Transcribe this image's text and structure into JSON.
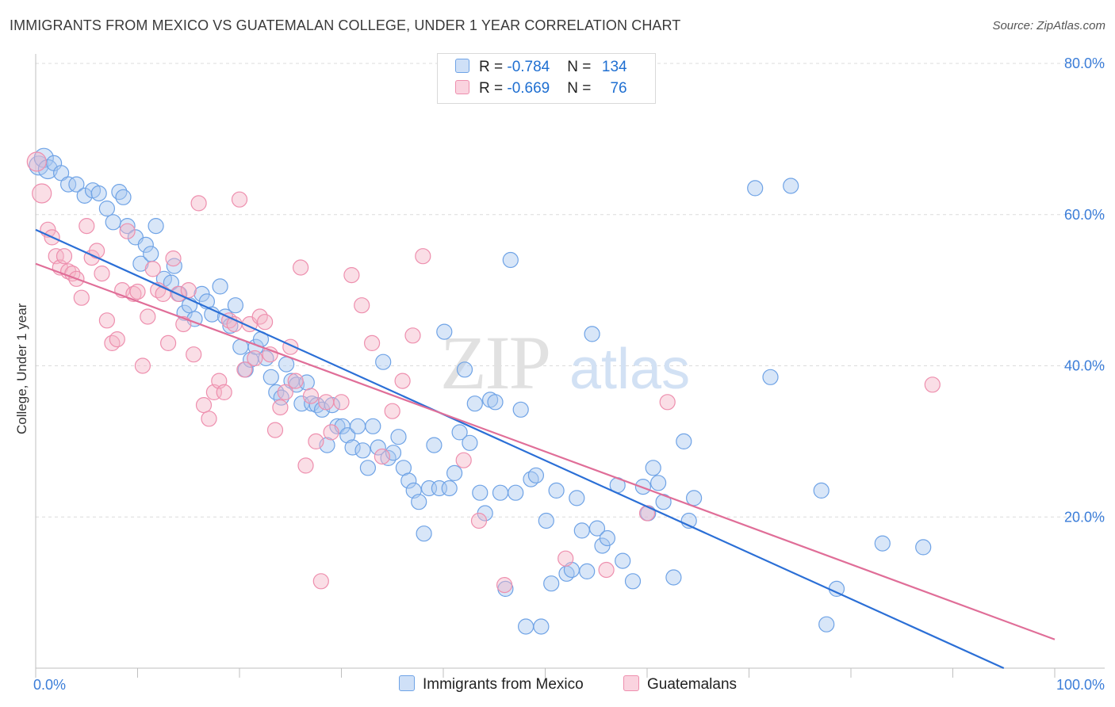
{
  "header": {
    "title": "IMMIGRANTS FROM MEXICO VS GUATEMALAN COLLEGE, UNDER 1 YEAR CORRELATION CHART",
    "source": "Source: ZipAtlas.com"
  },
  "watermark": {
    "zip": "ZIP",
    "atlas": "atlas"
  },
  "legend": {
    "rows": [
      {
        "r_label": "R = ",
        "r_value": "-0.784",
        "n_label": "N = ",
        "n_value": "134",
        "color": "#a8c8f0"
      },
      {
        "r_label": "R = ",
        "r_value": "-0.669",
        "n_label": "N = ",
        "n_value": "76",
        "color": "#f5b5c8"
      }
    ]
  },
  "chart_data": {
    "type": "scatter",
    "title": "IMMIGRANTS FROM MEXICO VS GUATEMALAN COLLEGE, UNDER 1 YEAR CORRELATION CHART",
    "xlabel": "",
    "ylabel": "College, Under 1 year",
    "xlim": [
      0,
      100
    ],
    "ylim": [
      0,
      80
    ],
    "x_tick_labels": [
      "0.0%",
      "100.0%"
    ],
    "y_ticks": [
      20,
      40,
      60,
      80
    ],
    "y_tick_labels": [
      "20.0%",
      "40.0%",
      "60.0%",
      "80.0%"
    ],
    "grid": "horizontal-dashed",
    "legend_position": "bottom-center",
    "series": [
      {
        "name": "Immigrants from Mexico",
        "color": "#6fa3e6",
        "fill": "#a8c8f0",
        "line_color": "#2b6fd6",
        "trend": {
          "x": [
            0,
            95
          ],
          "y": [
            58,
            0
          ]
        },
        "points": [
          [
            0.3,
            66.5
          ],
          [
            0.8,
            67.5
          ],
          [
            1.2,
            66
          ],
          [
            1.8,
            66.8
          ],
          [
            2.5,
            65.5
          ],
          [
            3.2,
            64
          ],
          [
            4,
            64
          ],
          [
            4.8,
            62.5
          ],
          [
            5.6,
            63.2
          ],
          [
            6.2,
            62.8
          ],
          [
            7,
            60.8
          ],
          [
            7.6,
            59
          ],
          [
            8.2,
            63
          ],
          [
            8.6,
            62.3
          ],
          [
            9,
            58.5
          ],
          [
            9.8,
            57
          ],
          [
            10.3,
            53.5
          ],
          [
            10.8,
            56
          ],
          [
            11.3,
            54.8
          ],
          [
            11.8,
            58.5
          ],
          [
            12.6,
            51.5
          ],
          [
            13.3,
            51
          ],
          [
            13.6,
            53.2
          ],
          [
            14.1,
            49.5
          ],
          [
            14.6,
            47
          ],
          [
            15.1,
            48
          ],
          [
            15.6,
            46.2
          ],
          [
            16.3,
            49.5
          ],
          [
            16.8,
            48.5
          ],
          [
            17.3,
            46.8
          ],
          [
            18.1,
            50.5
          ],
          [
            18.6,
            46.5
          ],
          [
            19.1,
            45.3
          ],
          [
            19.6,
            48
          ],
          [
            20.1,
            42.5
          ],
          [
            20.6,
            39.5
          ],
          [
            21.1,
            40.8
          ],
          [
            21.6,
            42.5
          ],
          [
            22.1,
            43.5
          ],
          [
            22.6,
            41
          ],
          [
            23.1,
            38.5
          ],
          [
            23.6,
            36.5
          ],
          [
            24.1,
            35.8
          ],
          [
            24.6,
            40.2
          ],
          [
            25.1,
            38
          ],
          [
            25.6,
            37.5
          ],
          [
            26.1,
            35
          ],
          [
            26.6,
            37.8
          ],
          [
            27.1,
            35
          ],
          [
            27.6,
            34.8
          ],
          [
            28.1,
            34.2
          ],
          [
            28.6,
            29.5
          ],
          [
            29.1,
            34.8
          ],
          [
            29.6,
            32
          ],
          [
            30.1,
            32
          ],
          [
            30.6,
            30.8
          ],
          [
            31.1,
            29.2
          ],
          [
            31.6,
            32
          ],
          [
            32.1,
            28.8
          ],
          [
            32.6,
            26.5
          ],
          [
            33.1,
            32
          ],
          [
            33.6,
            29.2
          ],
          [
            34.1,
            40.5
          ],
          [
            34.6,
            27.8
          ],
          [
            35.1,
            28.5
          ],
          [
            35.6,
            30.6
          ],
          [
            36.1,
            26.5
          ],
          [
            36.6,
            24.8
          ],
          [
            37.1,
            23.5
          ],
          [
            37.6,
            22
          ],
          [
            38.1,
            17.8
          ],
          [
            38.6,
            23.8
          ],
          [
            39.1,
            29.5
          ],
          [
            39.6,
            23.8
          ],
          [
            40.1,
            44.5
          ],
          [
            40.6,
            23.8
          ],
          [
            41.1,
            25.8
          ],
          [
            41.6,
            31.2
          ],
          [
            42.1,
            39.5
          ],
          [
            42.6,
            29.8
          ],
          [
            43.1,
            35
          ],
          [
            43.6,
            23.2
          ],
          [
            44.1,
            20.5
          ],
          [
            44.6,
            35.5
          ],
          [
            45.1,
            35.2
          ],
          [
            45.6,
            23.2
          ],
          [
            46.1,
            10.5
          ],
          [
            46.6,
            54
          ],
          [
            47.1,
            23.2
          ],
          [
            47.6,
            34.2
          ],
          [
            48.1,
            5.5
          ],
          [
            48.6,
            25
          ],
          [
            49.1,
            25.5
          ],
          [
            49.6,
            5.5
          ],
          [
            50.1,
            19.5
          ],
          [
            50.6,
            11.2
          ],
          [
            51.1,
            23.5
          ],
          [
            52.1,
            12.5
          ],
          [
            52.6,
            13
          ],
          [
            53.1,
            22.5
          ],
          [
            53.6,
            18.2
          ],
          [
            54.1,
            12.8
          ],
          [
            54.6,
            44.2
          ],
          [
            55.1,
            18.5
          ],
          [
            55.6,
            16.2
          ],
          [
            56.1,
            17.2
          ],
          [
            57.1,
            24.2
          ],
          [
            57.6,
            14.2
          ],
          [
            58.6,
            11.5
          ],
          [
            59.6,
            24
          ],
          [
            60.1,
            20.5
          ],
          [
            60.6,
            26.5
          ],
          [
            61.1,
            24.5
          ],
          [
            61.6,
            22
          ],
          [
            62.6,
            12
          ],
          [
            63.6,
            30
          ],
          [
            64.1,
            19.5
          ],
          [
            64.6,
            22.5
          ],
          [
            70.6,
            63.5
          ],
          [
            72.1,
            38.5
          ],
          [
            74.1,
            63.8
          ],
          [
            77.1,
            23.5
          ],
          [
            77.6,
            5.8
          ],
          [
            78.6,
            10.5
          ],
          [
            83.1,
            16.5
          ],
          [
            87.1,
            16
          ]
        ]
      },
      {
        "name": "Guatemalans",
        "color": "#ee8fae",
        "fill": "#f5b5c8",
        "line_color": "#e06e98",
        "trend": {
          "x": [
            0,
            100
          ],
          "y": [
            53.5,
            3.8
          ]
        },
        "points": [
          [
            0.1,
            67
          ],
          [
            0.6,
            62.8
          ],
          [
            1.2,
            58
          ],
          [
            1.6,
            57
          ],
          [
            2,
            54.5
          ],
          [
            2.4,
            53
          ],
          [
            2.8,
            54.5
          ],
          [
            3.2,
            52.5
          ],
          [
            3.6,
            52.2
          ],
          [
            4,
            51.5
          ],
          [
            4.5,
            49
          ],
          [
            5,
            58.5
          ],
          [
            5.5,
            54.3
          ],
          [
            6,
            55.2
          ],
          [
            6.5,
            52.2
          ],
          [
            7,
            46
          ],
          [
            7.5,
            43
          ],
          [
            8,
            43.5
          ],
          [
            8.5,
            50
          ],
          [
            9,
            57.8
          ],
          [
            9.6,
            49.5
          ],
          [
            10,
            49.8
          ],
          [
            10.5,
            40
          ],
          [
            11,
            46.5
          ],
          [
            11.5,
            52.8
          ],
          [
            12,
            50
          ],
          [
            12.5,
            49.5
          ],
          [
            13,
            43
          ],
          [
            13.5,
            54.2
          ],
          [
            14,
            49.5
          ],
          [
            14.5,
            45.5
          ],
          [
            15,
            50
          ],
          [
            15.5,
            41.5
          ],
          [
            16,
            61.5
          ],
          [
            16.5,
            34.8
          ],
          [
            17,
            33
          ],
          [
            17.5,
            36.5
          ],
          [
            18,
            38
          ],
          [
            18.5,
            36.5
          ],
          [
            19,
            46
          ],
          [
            19.5,
            45.5
          ],
          [
            20,
            62
          ],
          [
            20.5,
            39.5
          ],
          [
            21,
            45.5
          ],
          [
            21.5,
            41
          ],
          [
            22,
            46.5
          ],
          [
            22.5,
            45.8
          ],
          [
            23,
            41.5
          ],
          [
            23.5,
            31.5
          ],
          [
            24,
            34.5
          ],
          [
            24.5,
            36.5
          ],
          [
            25,
            42.5
          ],
          [
            25.5,
            38
          ],
          [
            26,
            53
          ],
          [
            26.5,
            26.8
          ],
          [
            27,
            36
          ],
          [
            27.5,
            30
          ],
          [
            28,
            11.5
          ],
          [
            28.5,
            35.2
          ],
          [
            29,
            31.2
          ],
          [
            30,
            35.2
          ],
          [
            31,
            52
          ],
          [
            32,
            48
          ],
          [
            33,
            43
          ],
          [
            34,
            28
          ],
          [
            35,
            34
          ],
          [
            36,
            38
          ],
          [
            37,
            44
          ],
          [
            38,
            54.5
          ],
          [
            42,
            27.5
          ],
          [
            43.5,
            19.5
          ],
          [
            46,
            11
          ],
          [
            52,
            14.5
          ],
          [
            56,
            13
          ],
          [
            60,
            20.5
          ],
          [
            62,
            35.2
          ],
          [
            88,
            37.5
          ]
        ]
      }
    ]
  },
  "bottom_legend": {
    "items": [
      {
        "label": "Immigrants from Mexico",
        "color": "#a8c8f0"
      },
      {
        "label": "Guatemalans",
        "color": "#f5b5c8"
      }
    ]
  }
}
